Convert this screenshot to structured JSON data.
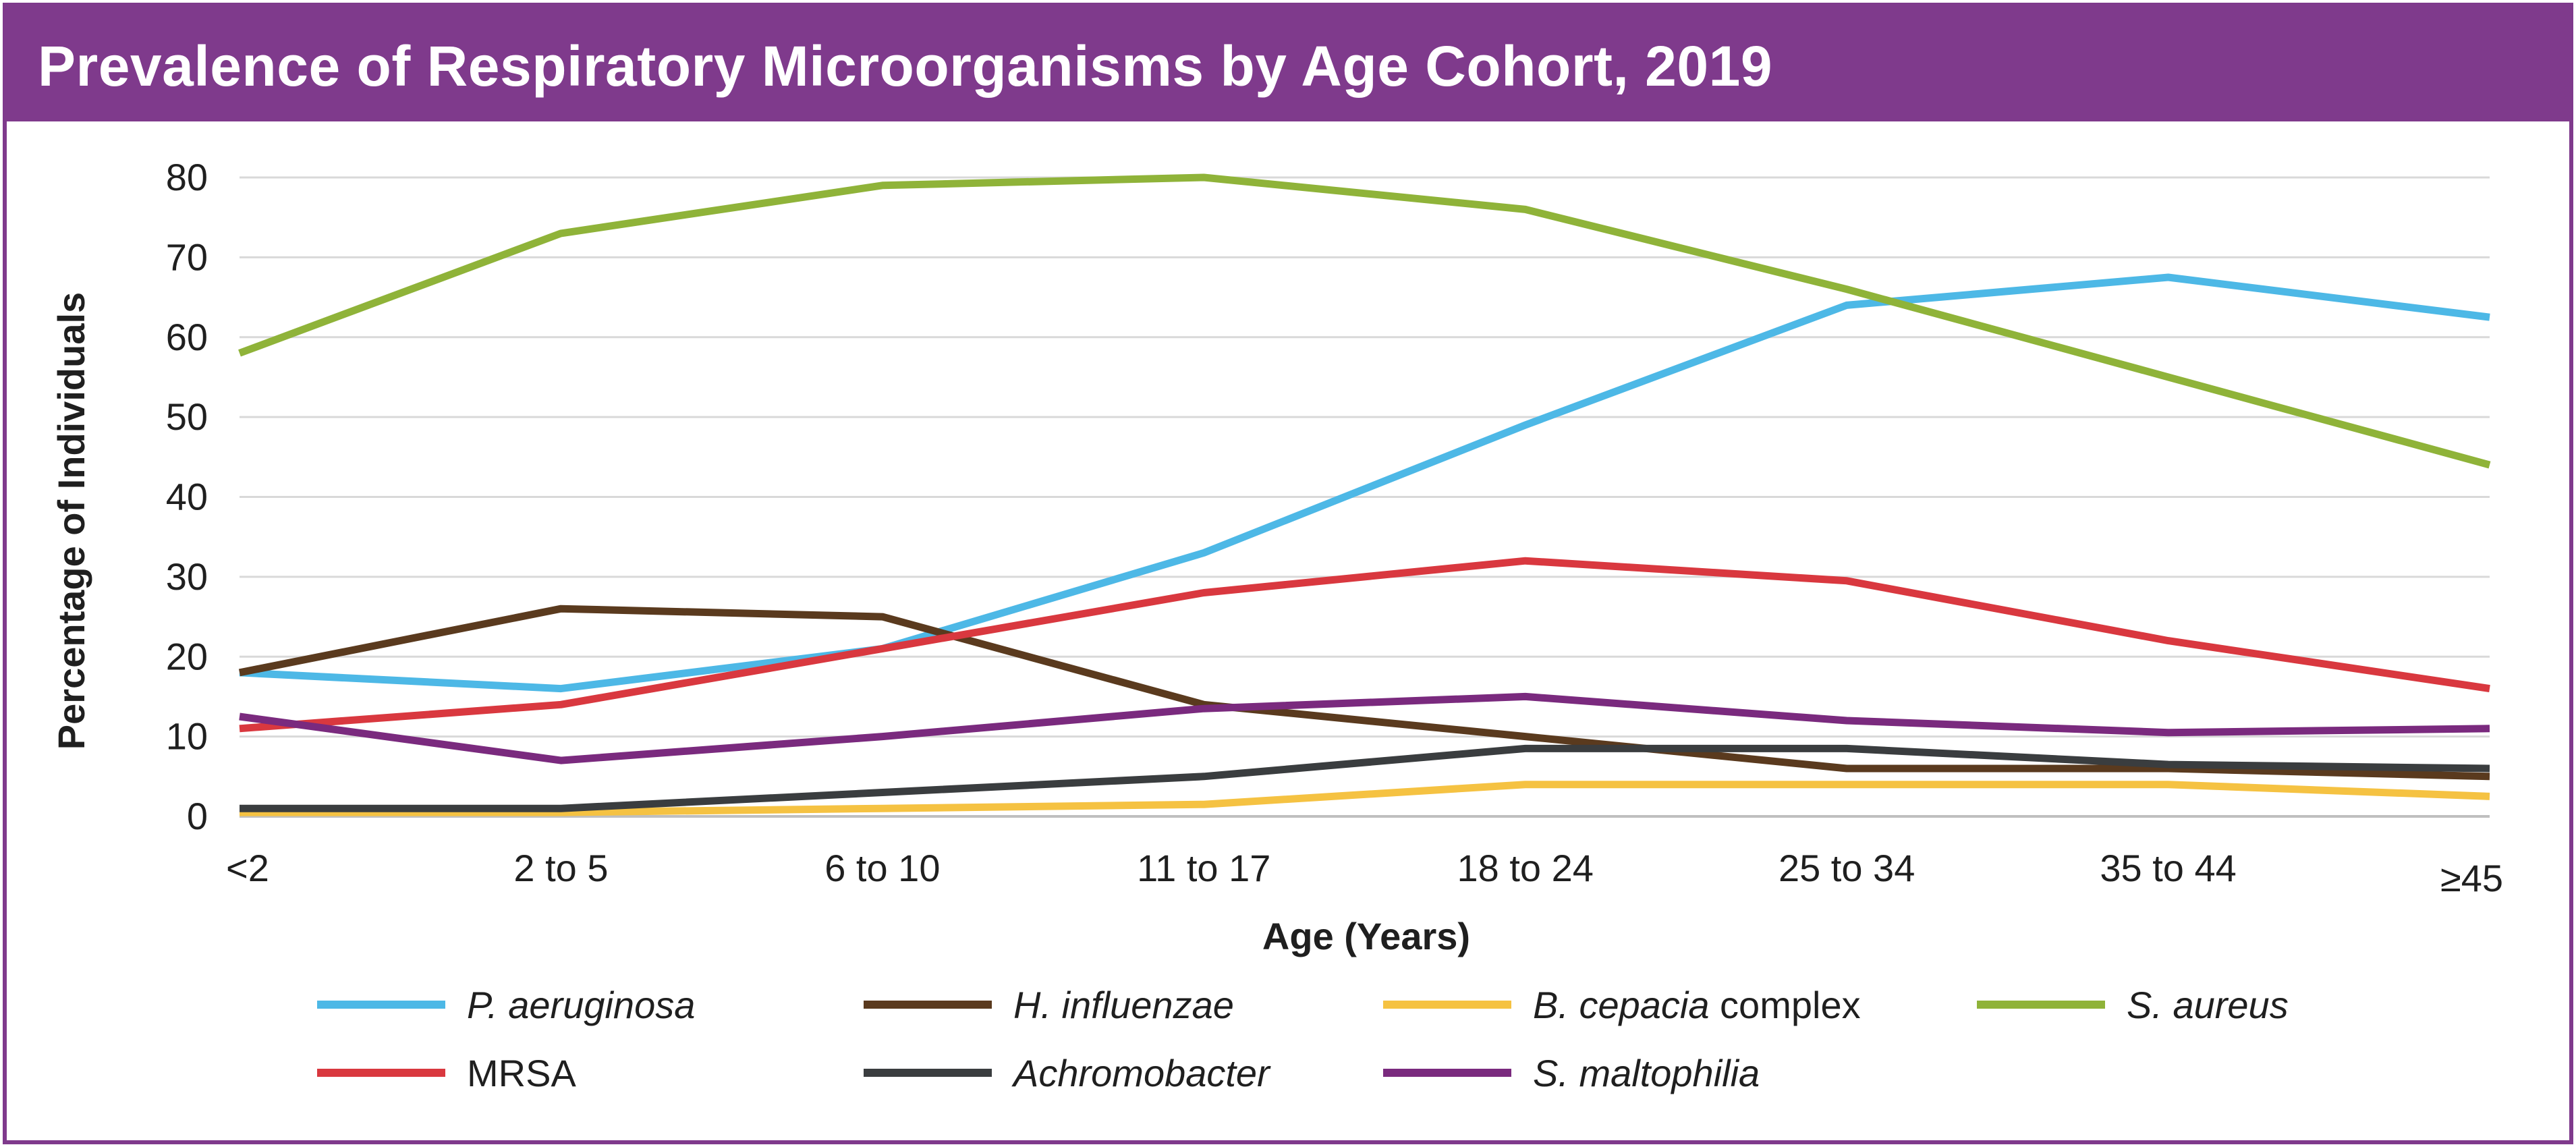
{
  "chart_data": {
    "type": "line",
    "title": "Prevalence of Respiratory Microorganisms by Age Cohort, 2019",
    "xlabel": "Age (Years)",
    "ylabel": "Percentage of Individuals",
    "ylim": [
      0,
      80
    ],
    "yticks": [
      "0",
      "10",
      "20",
      "30",
      "40",
      "50",
      "60",
      "70",
      "80"
    ],
    "grid": true,
    "legend_position": "bottom",
    "categories": [
      "<2",
      "2 to 5",
      "6 to 10",
      "11 to 17",
      "18 to 24",
      "25 to 34",
      "35 to 44",
      "≥45"
    ],
    "series": [
      {
        "name": "P. aeruginosa",
        "italic": "P. aeruginosa",
        "suffix": "",
        "color": "#4db8e6",
        "values": [
          18,
          16,
          21,
          33,
          49,
          64,
          67.5,
          62.5
        ]
      },
      {
        "name": "H. influenzae",
        "italic": "H. influenzae",
        "suffix": "",
        "color": "#5a3a1e",
        "values": [
          18,
          26,
          25,
          14,
          10,
          6,
          6,
          5
        ]
      },
      {
        "name": "B. cepacia complex",
        "italic": "B. cepacia",
        "suffix": " complex",
        "color": "#f5c242",
        "values": [
          0.5,
          0.5,
          1,
          1.5,
          4,
          4,
          4,
          2.5
        ]
      },
      {
        "name": "S. aureus",
        "italic": "S. aureus",
        "suffix": "",
        "color": "#8fb339",
        "values": [
          58,
          73,
          79,
          80,
          76,
          66,
          55,
          44
        ]
      },
      {
        "name": "MRSA",
        "italic": "",
        "suffix": "MRSA",
        "color": "#d9383f",
        "values": [
          11,
          14,
          21,
          28,
          32,
          29.5,
          22,
          16
        ]
      },
      {
        "name": "Achromobacter",
        "italic": "Achromobacter",
        "suffix": "",
        "color": "#3a3d3f",
        "values": [
          1,
          1,
          3,
          5,
          8.5,
          8.5,
          6.5,
          6
        ]
      },
      {
        "name": "S. maltophilia",
        "italic": "S. maltophilia",
        "suffix": "",
        "color": "#7a2a7e",
        "values": [
          12.5,
          7,
          10,
          13.5,
          15,
          12,
          10.5,
          11
        ]
      }
    ]
  },
  "colors": {
    "title_bar": "#7f3a8c",
    "grid": "#d9d9d9",
    "axis": "#bfbfbf"
  }
}
